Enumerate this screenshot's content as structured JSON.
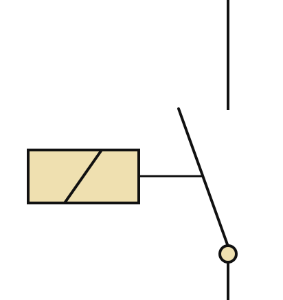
{
  "diagram": {
    "symbol": "relay-coil-with-normally-open-contact",
    "colors": {
      "background": "#ffffff",
      "stroke": "#111111",
      "coil_fill": "#efe0b0",
      "terminal_fill": "#efe0b0"
    },
    "elements": [
      "relay-coil-box",
      "coil-diagonal-mark",
      "actuator-linkage-line",
      "fixed-contact-line",
      "moving-contact-blade",
      "pivot-terminal-circle",
      "terminal-lead-line"
    ]
  }
}
